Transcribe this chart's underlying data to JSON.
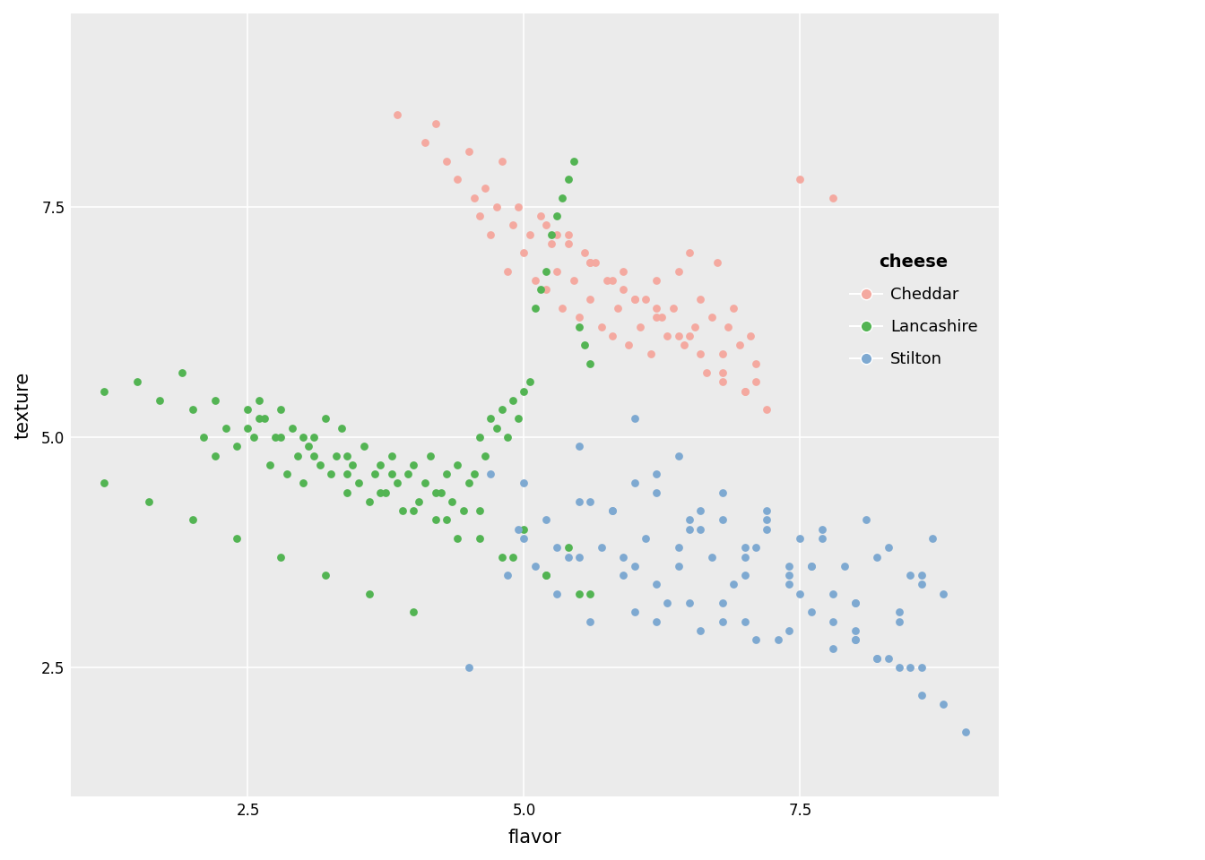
{
  "xlabel": "flavor",
  "ylabel": "texture",
  "legend_title": "cheese",
  "background_color": "#EBEBEB",
  "grid_color": "#FFFFFF",
  "xlim": [
    0.9,
    9.3
  ],
  "ylim": [
    1.1,
    9.6
  ],
  "xticks": [
    2.5,
    5.0,
    7.5
  ],
  "yticks": [
    2.5,
    5.0,
    7.5
  ],
  "colors": {
    "Cheddar": "#F4A9A0",
    "Lancashire": "#53B453",
    "Stilton": "#7EA9D1"
  },
  "marker_size": 40,
  "alpha": 1.0,
  "cheddar_flavor": [
    3.85,
    4.1,
    4.2,
    4.3,
    4.4,
    4.5,
    4.55,
    4.6,
    4.65,
    4.7,
    4.75,
    4.8,
    4.85,
    4.9,
    4.95,
    5.0,
    5.05,
    5.1,
    5.15,
    5.2,
    5.25,
    5.3,
    5.35,
    5.4,
    5.45,
    5.5,
    5.55,
    5.6,
    5.65,
    5.7,
    5.75,
    5.8,
    5.85,
    5.9,
    5.95,
    6.0,
    6.05,
    6.1,
    6.15,
    6.2,
    6.25,
    6.3,
    6.35,
    6.4,
    6.45,
    6.5,
    6.55,
    6.6,
    6.65,
    6.7,
    6.75,
    6.8,
    6.85,
    6.9,
    6.95,
    7.0,
    7.05,
    7.1,
    7.5,
    7.8,
    5.2,
    5.4,
    5.6,
    5.8,
    6.0,
    6.2,
    6.4,
    6.6,
    6.8,
    7.0,
    7.2,
    5.3,
    5.6,
    5.9,
    6.2,
    6.5,
    6.8,
    7.1
  ],
  "cheddar_texture": [
    8.5,
    8.2,
    8.4,
    8.0,
    7.8,
    8.1,
    7.6,
    7.4,
    7.7,
    7.2,
    7.5,
    8.0,
    6.8,
    7.3,
    7.5,
    7.0,
    7.2,
    6.7,
    7.4,
    6.6,
    7.1,
    6.8,
    6.4,
    7.2,
    6.7,
    6.3,
    7.0,
    6.5,
    6.9,
    6.2,
    6.7,
    6.1,
    6.4,
    6.8,
    6.0,
    6.5,
    6.2,
    6.5,
    5.9,
    6.7,
    6.3,
    6.1,
    6.4,
    6.8,
    6.0,
    7.0,
    6.2,
    6.5,
    5.7,
    6.3,
    6.9,
    5.6,
    6.2,
    6.4,
    6.0,
    5.5,
    6.1,
    5.8,
    7.8,
    7.6,
    7.3,
    7.1,
    6.9,
    6.7,
    6.5,
    6.3,
    6.1,
    5.9,
    5.7,
    5.5,
    5.3,
    7.2,
    6.9,
    6.6,
    6.4,
    6.1,
    5.9,
    5.6
  ],
  "lancashire_flavor": [
    1.2,
    1.5,
    1.7,
    1.9,
    2.0,
    2.1,
    2.2,
    2.3,
    2.4,
    2.5,
    2.55,
    2.6,
    2.65,
    2.7,
    2.75,
    2.8,
    2.85,
    2.9,
    2.95,
    3.0,
    3.05,
    3.1,
    3.15,
    3.2,
    3.25,
    3.3,
    3.35,
    3.4,
    3.45,
    3.5,
    3.55,
    3.6,
    3.65,
    3.7,
    3.75,
    3.8,
    3.85,
    3.9,
    3.95,
    4.0,
    4.05,
    4.1,
    4.15,
    4.2,
    4.25,
    4.3,
    4.35,
    4.4,
    4.45,
    4.5,
    4.55,
    4.6,
    4.65,
    4.7,
    4.75,
    4.8,
    4.85,
    4.9,
    4.95,
    5.0,
    5.05,
    5.1,
    5.15,
    5.2,
    5.25,
    5.3,
    5.35,
    5.4,
    5.45,
    5.5,
    5.55,
    5.6,
    1.2,
    1.6,
    2.0,
    2.4,
    2.8,
    3.2,
    3.6,
    4.0,
    4.4,
    4.8,
    5.2,
    5.6,
    2.5,
    2.8,
    3.1,
    3.4,
    3.7,
    4.0,
    4.3,
    4.6,
    4.9,
    5.2,
    5.5,
    2.2,
    2.6,
    3.0,
    3.4,
    3.8,
    4.2,
    4.6,
    5.0,
    5.4
  ],
  "lancashire_texture": [
    5.5,
    5.6,
    5.4,
    5.7,
    5.3,
    5.0,
    4.8,
    5.1,
    4.9,
    5.3,
    5.0,
    5.4,
    5.2,
    4.7,
    5.0,
    5.3,
    4.6,
    5.1,
    4.8,
    4.5,
    4.9,
    5.0,
    4.7,
    5.2,
    4.6,
    4.8,
    5.1,
    4.4,
    4.7,
    4.5,
    4.9,
    4.3,
    4.6,
    4.7,
    4.4,
    4.8,
    4.5,
    4.2,
    4.6,
    4.7,
    4.3,
    4.5,
    4.8,
    4.1,
    4.4,
    4.6,
    4.3,
    4.7,
    4.2,
    4.5,
    4.6,
    5.0,
    4.8,
    5.2,
    5.1,
    5.3,
    5.0,
    5.4,
    5.2,
    5.5,
    5.6,
    6.4,
    6.6,
    6.8,
    7.2,
    7.4,
    7.6,
    7.8,
    8.0,
    6.2,
    6.0,
    5.8,
    4.5,
    4.3,
    4.1,
    3.9,
    3.7,
    3.5,
    3.3,
    3.1,
    3.9,
    3.7,
    3.5,
    3.3,
    5.1,
    5.0,
    4.8,
    4.6,
    4.4,
    4.2,
    4.1,
    3.9,
    3.7,
    3.5,
    3.3,
    5.4,
    5.2,
    5.0,
    4.8,
    4.6,
    4.4,
    4.2,
    4.0,
    3.8
  ],
  "stilton_flavor": [
    4.5,
    4.7,
    4.85,
    4.95,
    5.0,
    5.1,
    5.2,
    5.3,
    5.4,
    5.5,
    5.6,
    5.7,
    5.8,
    5.9,
    6.0,
    6.1,
    6.2,
    6.3,
    6.4,
    6.5,
    6.6,
    6.7,
    6.8,
    6.9,
    7.0,
    7.1,
    7.2,
    7.3,
    7.4,
    7.5,
    7.6,
    7.7,
    7.8,
    7.9,
    8.0,
    8.1,
    8.2,
    8.3,
    8.4,
    8.5,
    8.6,
    8.7,
    8.8,
    5.5,
    5.8,
    6.0,
    6.2,
    6.4,
    6.6,
    6.8,
    7.0,
    7.2,
    7.4,
    7.6,
    7.8,
    8.0,
    8.2,
    8.4,
    8.6,
    5.0,
    5.3,
    5.6,
    5.9,
    6.2,
    6.5,
    6.8,
    7.1,
    7.4,
    7.7,
    8.0,
    8.3,
    8.6,
    6.0,
    6.4,
    6.8,
    7.2,
    7.6,
    8.0,
    8.4,
    8.8,
    5.5,
    6.0,
    6.5,
    7.0,
    7.5,
    8.0,
    8.5,
    9.0,
    6.2,
    6.6,
    7.0,
    7.4,
    7.8,
    8.2,
    8.6
  ],
  "stilton_texture": [
    2.5,
    4.6,
    3.5,
    4.0,
    3.9,
    3.6,
    4.1,
    3.3,
    3.7,
    4.3,
    3.0,
    3.8,
    4.2,
    3.5,
    3.1,
    3.9,
    4.4,
    3.2,
    3.6,
    4.0,
    2.9,
    3.7,
    4.1,
    3.4,
    3.0,
    3.8,
    4.2,
    2.8,
    3.5,
    3.9,
    3.1,
    4.0,
    2.7,
    3.6,
    3.2,
    4.1,
    2.6,
    3.8,
    3.0,
    3.5,
    2.5,
    3.9,
    3.3,
    3.7,
    4.2,
    3.6,
    3.0,
    3.8,
    4.0,
    3.2,
    3.5,
    4.1,
    2.9,
    3.6,
    3.3,
    2.8,
    3.7,
    3.1,
    3.4,
    4.5,
    3.8,
    4.3,
    3.7,
    3.4,
    3.2,
    3.0,
    2.8,
    3.6,
    3.9,
    3.2,
    2.6,
    3.5,
    5.2,
    4.8,
    4.4,
    4.0,
    3.6,
    2.8,
    2.5,
    2.1,
    4.9,
    4.5,
    4.1,
    3.7,
    3.3,
    2.9,
    2.5,
    1.8,
    4.6,
    4.2,
    3.8,
    3.4,
    3.0,
    2.6,
    2.2
  ]
}
